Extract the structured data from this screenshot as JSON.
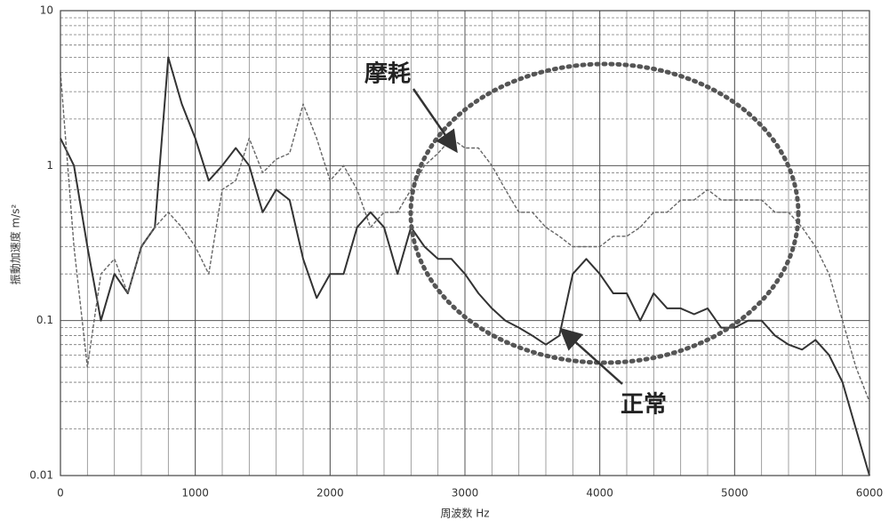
{
  "chart_data": {
    "type": "line",
    "x_label": "周波数 Hz",
    "y_label": "振動加速度 m/s²",
    "log_y": true,
    "grid": true,
    "minor_grid": true,
    "xlim": [
      0,
      6000
    ],
    "xticks": [
      0,
      1000,
      2000,
      3000,
      4000,
      5000,
      6000
    ],
    "ylim": [
      0.01,
      10
    ],
    "yticks": [
      0.01,
      0.1,
      1,
      10
    ],
    "x": [
      0,
      100,
      200,
      300,
      400,
      500,
      600,
      700,
      800,
      900,
      1000,
      1100,
      1200,
      1300,
      1400,
      1500,
      1600,
      1700,
      1800,
      1900,
      2000,
      2100,
      2200,
      2300,
      2400,
      2500,
      2600,
      2700,
      2800,
      2900,
      3000,
      3100,
      3200,
      3300,
      3400,
      3500,
      3600,
      3700,
      3800,
      3900,
      4000,
      4100,
      4200,
      4300,
      4400,
      4500,
      4600,
      4700,
      4800,
      4900,
      5000,
      5100,
      5200,
      5300,
      5400,
      5500,
      5600,
      5700,
      5800,
      5900,
      6000
    ],
    "series": [
      {
        "name": "正常",
        "color": "#333333",
        "style": "solid",
        "values": [
          1.5,
          1.0,
          0.3,
          0.1,
          0.2,
          0.15,
          0.3,
          0.4,
          5.0,
          2.5,
          1.5,
          0.8,
          1.0,
          1.3,
          1.0,
          0.5,
          0.7,
          0.6,
          0.25,
          0.14,
          0.2,
          0.2,
          0.4,
          0.5,
          0.4,
          0.2,
          0.4,
          0.3,
          0.25,
          0.25,
          0.2,
          0.15,
          0.12,
          0.1,
          0.09,
          0.08,
          0.07,
          0.08,
          0.2,
          0.25,
          0.2,
          0.15,
          0.15,
          0.1,
          0.15,
          0.12,
          0.12,
          0.11,
          0.12,
          0.09,
          0.09,
          0.1,
          0.1,
          0.08,
          0.07,
          0.065,
          0.075,
          0.06,
          0.04,
          0.02,
          0.01
        ]
      },
      {
        "name": "摩耗",
        "color": "#666666",
        "style": "dashed",
        "values": [
          4.0,
          0.3,
          0.05,
          0.2,
          0.25,
          0.15,
          0.3,
          0.4,
          0.5,
          0.4,
          0.3,
          0.2,
          0.7,
          0.8,
          1.5,
          0.9,
          1.1,
          1.2,
          2.5,
          1.5,
          0.8,
          1.0,
          0.7,
          0.4,
          0.5,
          0.5,
          0.7,
          1.0,
          1.2,
          1.5,
          1.3,
          1.3,
          1.0,
          0.7,
          0.5,
          0.5,
          0.4,
          0.35,
          0.3,
          0.3,
          0.3,
          0.35,
          0.35,
          0.4,
          0.5,
          0.5,
          0.6,
          0.6,
          0.7,
          0.6,
          0.6,
          0.6,
          0.6,
          0.5,
          0.5,
          0.4,
          0.3,
          0.2,
          0.1,
          0.05,
          0.03
        ]
      }
    ]
  }
}
